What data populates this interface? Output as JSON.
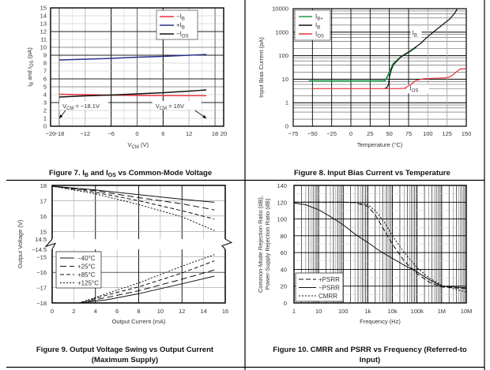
{
  "chart_data": [
    {
      "id": "fig7",
      "type": "line",
      "caption": "Figure 7. I_B and I_OS vs Common-Mode Voltage",
      "caption_parts": [
        "Figure 7. I",
        "B",
        " and I",
        "OS",
        " vs Common-Mode Voltage"
      ],
      "xlabel": "V_CM (V)",
      "xlabel_parts": [
        "V",
        "CM",
        " (V)"
      ],
      "ylabel": "I_B and I_OS (pA)",
      "ylabel_parts": [
        "I",
        "B",
        " and I",
        "OS",
        " (pA)"
      ],
      "xlim": [
        -20,
        20
      ],
      "ylim": [
        0,
        15
      ],
      "xticks": [
        -20,
        -18,
        -12,
        -6,
        0,
        6,
        12,
        18,
        20
      ],
      "xtick_labels": [
        "−20",
        "−18",
        "−12",
        "−6",
        "0",
        "6",
        "12",
        "18",
        "20"
      ],
      "yticks": [
        0,
        1,
        2,
        3,
        4,
        5,
        6,
        7,
        8,
        9,
        10,
        11,
        12,
        13,
        14,
        15
      ],
      "ytick_labels": [
        "0",
        "1",
        "2",
        "3",
        "4",
        "5",
        "6",
        "7",
        "8",
        "9",
        "10",
        "11",
        "12",
        "13",
        "14",
        "15"
      ],
      "grid": true,
      "legend": "top-right",
      "series": [
        {
          "name": "−I_B",
          "label_main": "−I",
          "label_sub": "B",
          "color": "#e8303a",
          "dash": "",
          "x": [
            -18,
            -12,
            -6,
            0,
            6,
            12,
            16
          ],
          "y": [
            4.05,
            4.0,
            3.95,
            3.9,
            3.88,
            3.87,
            3.87
          ]
        },
        {
          "name": "+I_B",
          "label_main": "+I",
          "label_sub": "B",
          "color": "#2a2f8a",
          "dash": "",
          "x": [
            -18,
            -12,
            -6,
            0,
            6,
            12,
            16
          ],
          "y": [
            8.4,
            8.5,
            8.6,
            8.75,
            8.85,
            9.0,
            9.1
          ]
        },
        {
          "name": "−I_OS",
          "label_main": "−I",
          "label_sub": "OS",
          "color": "#111111",
          "dash": "",
          "x": [
            -18,
            -12,
            -6,
            0,
            6,
            12,
            16
          ],
          "y": [
            3.7,
            3.85,
            3.95,
            4.1,
            4.25,
            4.45,
            4.6
          ]
        }
      ],
      "annotations": [
        {
          "text_main": "V",
          "text_sub": "CM",
          "text_rest": " = −18.1V",
          "x": -12.5,
          "y": 2.5,
          "arrow_to": [
            -18,
            1
          ]
        },
        {
          "text_main": "V",
          "text_sub": "CM",
          "text_rest": " = 16V",
          "x": 9,
          "y": 2.5,
          "arrow_to": [
            16,
            1
          ]
        }
      ]
    },
    {
      "id": "fig8",
      "type": "line",
      "caption": "Figure 8. Input Bias Current vs Temperature",
      "xlabel": "Temperature (°C)",
      "ylabel": "Input Bias Current (pA)",
      "xlim": [
        -75,
        150
      ],
      "ylim_log": [
        0.1,
        10000
      ],
      "yscale": "log",
      "xticks": [
        -75,
        -50,
        -25,
        0,
        25,
        50,
        75,
        100,
        125,
        150
      ],
      "xtick_labels": [
        "−75",
        "−50",
        "−25",
        "0",
        "25",
        "50",
        "75",
        "100",
        "125",
        "150"
      ],
      "yticks": [
        0.1,
        1,
        10,
        100,
        1000,
        10000
      ],
      "ytick_labels": [
        "0",
        "1",
        "10",
        "100",
        "1000",
        "10000"
      ],
      "grid": true,
      "legend": "top-left",
      "series": [
        {
          "name": "I_B+",
          "label_main": "I",
          "label_sub": "B+",
          "color": "#1a9a45",
          "dash": "",
          "x": [
            -55,
            0,
            40,
            44,
            47,
            50,
            55,
            65,
            75,
            85
          ],
          "y": [
            8.5,
            8.5,
            8.5,
            8.7,
            12,
            20,
            45,
            90,
            140,
            230
          ]
        },
        {
          "name": "I_B",
          "label_main": "I",
          "label_sub": "B",
          "color": "#111111",
          "dash": "",
          "x": [
            44,
            47,
            49,
            50,
            52,
            55,
            65,
            75,
            90,
            100,
            110,
            120,
            128,
            135,
            138
          ],
          "y": [
            4,
            4.5,
            6,
            12,
            22,
            40,
            90,
            140,
            320,
            650,
            1200,
            2200,
            3500,
            6500,
            9500
          ]
        },
        {
          "name": "I_OS",
          "label_main": "I",
          "label_sub": "OS",
          "color": "#e8303a",
          "dash": "",
          "x": [
            -50,
            -48,
            50,
            60,
            70,
            78,
            85,
            95,
            110,
            125,
            130,
            135,
            142,
            150
          ],
          "y": [
            4,
            4,
            4,
            4,
            4.1,
            6,
            9,
            10.5,
            11,
            11.5,
            13,
            18,
            27,
            28
          ]
        }
      ],
      "annotations": [
        {
          "text_main": "I",
          "text_sub": "B",
          "x": 90,
          "y": 800
        },
        {
          "text_main": "I",
          "text_sub": "OS",
          "x": 95,
          "y": 4
        }
      ]
    },
    {
      "id": "fig9",
      "type": "line",
      "caption_lines": [
        "Figure 9. Output Voltage Swing vs Output Current",
        "(Maximum Supply)"
      ],
      "caption": "Figure 9. Output Voltage Swing vs Output Current (Maximum Supply)",
      "xlabel": "Output Current (mA)",
      "ylabel": "Output Voltage (V)",
      "xlim": [
        0,
        16
      ],
      "ylim_upper": [
        14.5,
        18
      ],
      "ylim_lower": [
        -18,
        -14.5
      ],
      "axis_break": true,
      "xticks": [
        0,
        2,
        4,
        6,
        8,
        10,
        12,
        14,
        16
      ],
      "xtick_labels": [
        "0",
        "2",
        "4",
        "6",
        "8",
        "10",
        "12",
        "14",
        "16"
      ],
      "yticks_upper": [
        18,
        17,
        16,
        15,
        14.5
      ],
      "ytick_upper_labels": [
        "18",
        "17",
        "16",
        "15",
        "14.5"
      ],
      "yticks_lower": [
        -14.5,
        -15,
        -16,
        -17,
        -18
      ],
      "ytick_lower_labels": [
        "−14.5",
        "−15",
        "−16",
        "−17",
        "−18"
      ],
      "grid": true,
      "legend": "lower-left of upper half",
      "series": [
        {
          "name": "−40°C",
          "dash": "",
          "x_upper": [
            0,
            4,
            8,
            12,
            15
          ],
          "y_upper": [
            17.95,
            17.7,
            17.4,
            17.1,
            16.9
          ],
          "x_lower": [
            2.5,
            5,
            8,
            12,
            15
          ],
          "y_lower": [
            -18,
            -17.8,
            -17.4,
            -16.75,
            -16.25
          ]
        },
        {
          "name": "+25°C",
          "dash": "8,4",
          "x_upper": [
            0,
            4,
            8,
            12,
            15
          ],
          "y_upper": [
            17.95,
            17.65,
            17.2,
            16.8,
            16.4
          ],
          "x_lower": [
            2.5,
            5,
            8,
            12,
            15
          ],
          "y_lower": [
            -18,
            -17.65,
            -17.2,
            -16.45,
            -15.85
          ]
        },
        {
          "name": "+85°C",
          "dash": "5,3",
          "x_upper": [
            0,
            4,
            8,
            12,
            15
          ],
          "y_upper": [
            17.95,
            17.55,
            17.0,
            16.35,
            15.8
          ],
          "x_lower": [
            2.5,
            5,
            8,
            12,
            15
          ],
          "y_lower": [
            -18,
            -17.5,
            -16.95,
            -16.05,
            -15.25
          ]
        },
        {
          "name": "+125°C",
          "dash": "2,2",
          "x_upper": [
            0,
            4,
            8,
            12,
            15
          ],
          "y_upper": [
            17.95,
            17.45,
            16.75,
            15.95,
            15.05
          ],
          "x_lower": [
            2.5,
            5,
            8,
            12,
            15
          ],
          "y_lower": [
            -18,
            -17.4,
            -16.7,
            -15.6,
            -14.85
          ]
        }
      ]
    },
    {
      "id": "fig10",
      "type": "line",
      "caption_lines": [
        "Figure 10. CMRR and PSRR vs Frequency (Referred-to",
        "Input)"
      ],
      "caption": "Figure 10. CMRR and PSRR vs Frequency (Referred-to Input)",
      "xlabel": "Frequency (Hz)",
      "ylabel_lines": [
        "Common-Mode Rejection Ratio (dB),",
        "Power-Supply Rejection Ratio (dB)"
      ],
      "ylabel": "Common-Mode Rejection Ratio (dB), Power-Supply Rejection Ratio (dB)",
      "xscale": "log",
      "xlim": [
        1,
        10000000
      ],
      "ylim": [
        0,
        140
      ],
      "xticks": [
        1,
        10,
        100,
        1000,
        10000,
        100000,
        1000000,
        10000000
      ],
      "xtick_labels": [
        "1",
        "10",
        "100",
        "1k",
        "10k",
        "100k",
        "1M",
        "10M"
      ],
      "yticks": [
        0,
        20,
        40,
        60,
        80,
        100,
        120,
        140
      ],
      "ytick_labels": [
        "0",
        "20",
        "40",
        "60",
        "80",
        "100",
        "120",
        "140"
      ],
      "grid": true,
      "legend": "bottom-left",
      "series": [
        {
          "name": "+PSRR",
          "dash": "6,3",
          "x": [
            1,
            10,
            100,
            300,
            1000,
            2000,
            5000,
            10000,
            30000,
            100000,
            300000,
            1000000,
            3000000,
            10000000
          ],
          "y": [
            120,
            120,
            120,
            119.5,
            115,
            105,
            85,
            70,
            50,
            35,
            25,
            19,
            18,
            17
          ]
        },
        {
          "name": "−PSRR",
          "dash": "",
          "x": [
            1,
            3,
            10,
            30,
            100,
            300,
            1000,
            3000,
            10000,
            30000,
            100000,
            300000,
            1000000,
            3000000,
            10000000
          ],
          "y": [
            119,
            117,
            111,
            103,
            93,
            82,
            72,
            62,
            53,
            45,
            37,
            28,
            20,
            19,
            18
          ]
        },
        {
          "name": "CMRR",
          "dash": "2,2",
          "x": [
            1,
            10,
            100,
            300,
            1000,
            2000,
            5000,
            10000,
            30000,
            100000,
            300000,
            1000000,
            3000000,
            10000000
          ],
          "y": [
            120,
            120,
            120,
            119.5,
            117,
            110,
            95,
            80,
            60,
            42,
            30,
            21,
            17,
            13
          ]
        }
      ]
    }
  ]
}
